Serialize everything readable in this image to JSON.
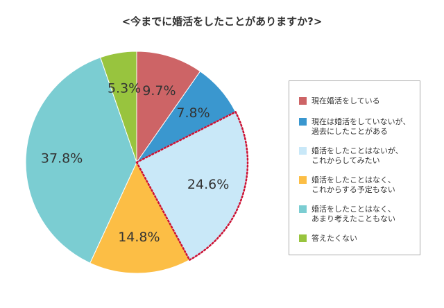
{
  "chart_data": {
    "type": "pie",
    "title": "<今までに婚活をしたことがありますか?>",
    "start_angle_deg": 0,
    "direction": "clockwise",
    "slices": [
      {
        "label": "現在婚活をしている",
        "value": 9.7,
        "value_label": "9.7%",
        "color": "#CD6466",
        "highlight": false
      },
      {
        "label": "現在は婚活をしていないが、\n過去にしたことがある",
        "value": 7.8,
        "value_label": "7.8%",
        "color": "#3A97CF",
        "highlight": false
      },
      {
        "label": "婚活をしたことはないが、\nこれからしてみたい",
        "value": 24.6,
        "value_label": "24.6%",
        "color": "#C9E8F8",
        "highlight": true
      },
      {
        "label": "婚活をしたことはなく、\nこれからする予定もない",
        "value": 14.8,
        "value_label": "14.8%",
        "color": "#FCBE45",
        "highlight": false
      },
      {
        "label": "婚活をしたことはなく、\nあまり考えたこともない",
        "value": 37.8,
        "value_label": "37.8%",
        "color": "#7BCDD2",
        "highlight": false
      },
      {
        "label": "答えたくない",
        "value": 5.3,
        "value_label": "5.3%",
        "color": "#98C43E",
        "highlight": false
      }
    ],
    "highlight_outline_color": "#CC1133",
    "legend_position": "right"
  }
}
